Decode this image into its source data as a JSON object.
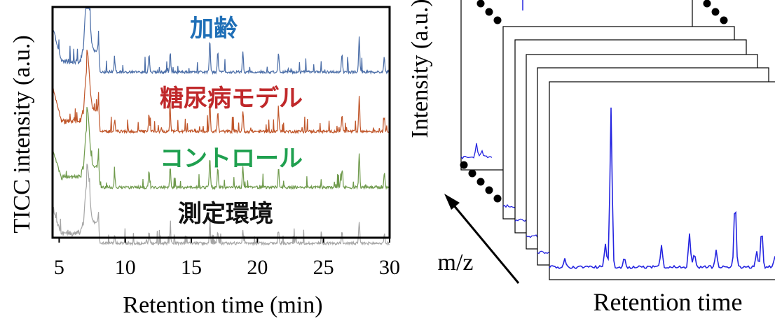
{
  "chart_data": [
    {
      "type": "line",
      "title": "",
      "xlabel": "Retention time (min)",
      "ylabel": "TICC intensity (a.u.)",
      "xlim": [
        4.5,
        30
      ],
      "x_ticks": [
        "5",
        "10",
        "15",
        "20",
        "25",
        "30"
      ],
      "grid": false,
      "series": [
        {
          "name": "加齢",
          "color": "#4a6da7",
          "label_color": "#1f6fb7"
        },
        {
          "name": "糖尿病モデル",
          "color": "#c0562a",
          "label_color": "#c0282a"
        },
        {
          "name": "コントロール",
          "color": "#6f9a4c",
          "label_color": "#1fa04f"
        },
        {
          "name": "測定環境",
          "color": "#a5a5a5",
          "label_color": "#111111"
        }
      ],
      "major_peaks_min": [
        7.1,
        8.0,
        9.2,
        11.8,
        13.4,
        16.4,
        17.0,
        18.9,
        21.6,
        26.4,
        27.7,
        29.6
      ]
    },
    {
      "type": "line",
      "title": "",
      "xlabel": "Retention time",
      "ylabel": "Intensity (a.u.)",
      "depth_label": "m/z",
      "stack_count": 7,
      "grid": false,
      "series": [
        {
          "name": "",
          "color": "#2424e0"
        }
      ]
    }
  ]
}
